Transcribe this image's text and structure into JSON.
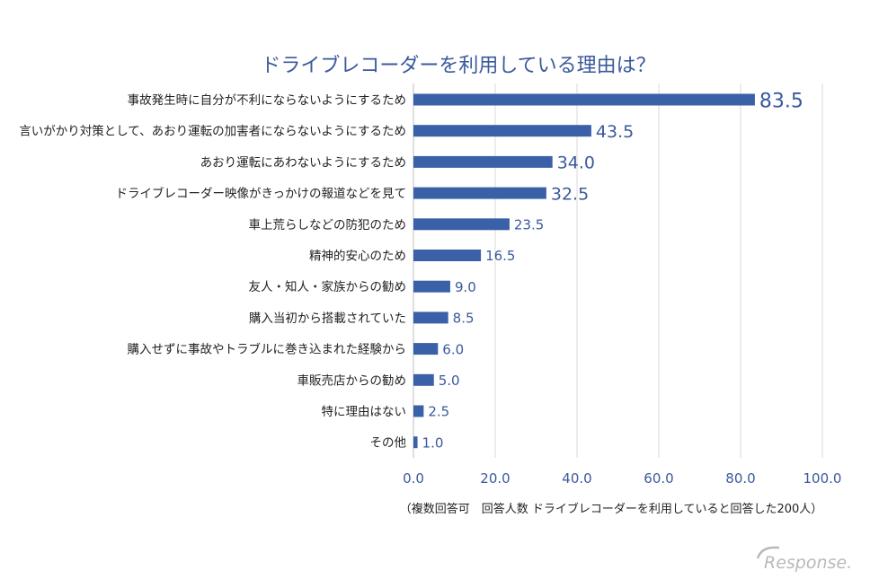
{
  "chart_data": {
    "type": "bar",
    "orientation": "horizontal",
    "title": "ドライブレコーダーを利用している理由は？",
    "categories": [
      "事故発生時に自分が不利にならないようにするため",
      "言いがかり対策として、あおり運転の加害者にならないようにするため",
      "あおり運転にあわないようにするため",
      "ドライブレコーダー映像がきっかけの報道などを見て",
      "車上荒らしなどの防犯のため",
      "精神的安心のため",
      "友人・知人・家族からの勧め",
      "購入当初から搭載されていた",
      "購入せずに事故やトラブルに巻き込まれた経験から",
      "車販売店からの勧め",
      "特に理由はない",
      "その他"
    ],
    "values": [
      83.5,
      43.5,
      34.0,
      32.5,
      23.5,
      16.5,
      9.0,
      8.5,
      6.0,
      5.0,
      2.5,
      1.0
    ],
    "value_labels": [
      "83.5",
      "43.5",
      "34.0",
      "32.5",
      "23.5",
      "16.5",
      "9.0",
      "8.5",
      "6.0",
      "5.0",
      "2.5",
      "1.0"
    ],
    "xlim": [
      0,
      100
    ],
    "xticks": [
      "0.0",
      "20.0",
      "40.0",
      "60.0",
      "80.0",
      "100.0"
    ],
    "xlabel": "",
    "ylabel": "",
    "grid": true,
    "note": "（複数回答可　回答人数 ドライブレコーダーを利用していると回答した200人）"
  },
  "colors": {
    "bar": "#3a60a8",
    "accent": "#3a5a9c"
  },
  "watermark": "Response."
}
